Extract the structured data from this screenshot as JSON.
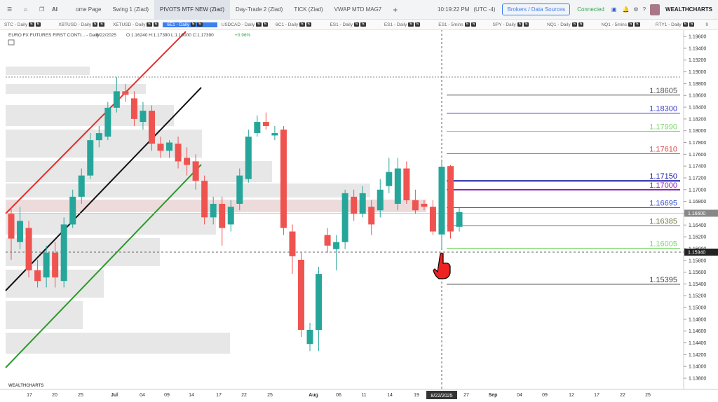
{
  "toolbar": {
    "ai_label": "AI",
    "tabs": [
      "ome Page",
      "Swing 1 (Ziad)",
      "PIVOTS MTF NEW (Ziad)",
      "Day-Trade 2 (Ziad)",
      "TICK (Ziad)",
      "VWAP MTD MAG7"
    ],
    "active_tab": 2
  },
  "clock": "10:19:22 PM",
  "timezone": "(UTC -4)",
  "broker_button": "Brokers / Data Sources",
  "status": "Connected",
  "brand": "WEALTHCHARTS",
  "symbols": [
    "STC - Daily",
    "XBTUSD - Daily",
    "XETUSD - Daily",
    "6E1 - Daily",
    "USDCAD - Daily",
    "6C1 - Daily",
    "ES1 - Daily",
    "ES1 - Daily",
    "ES1 - 5mins",
    "SPY - Daily",
    "NQ1 - Daily",
    "NQ1 - 5mins",
    "RTY1 - Daily"
  ],
  "active_symbol": 3,
  "symbol_badge": "5",
  "more_count": "9",
  "chart_data": {
    "type": "candlestick",
    "title": "EURO FX FUTURES FIRST CONTI... - Daily",
    "date": "8/22/2025",
    "ohlc": "O:1.16240 H:1.17390 L:1.16000 C:1.17390",
    "change": "+0.96%",
    "open": [
      1.1659,
      1.1611,
      1.1635,
      1.1563,
      1.1551,
      1.1593,
      1.1545,
      1.1641,
      1.1688,
      1.1724,
      1.1784,
      1.179,
      1.1839,
      1.1867,
      1.1855,
      1.1815,
      1.1834,
      1.1778,
      1.1766,
      1.1778,
      1.1754,
      1.1748,
      1.1715,
      1.1653,
      1.1676,
      1.1641,
      1.1676,
      1.1718,
      1.1796,
      1.1815,
      1.1792,
      1.1802,
      1.1629,
      1.1581,
      1.1438,
      1.1462,
      1.1623,
      1.1599,
      1.1611,
      1.1688,
      1.1659,
      1.1671,
      1.1665,
      1.1706,
      1.1676,
      1.1736,
      1.1682,
      1.1676,
      1.1671,
      1.1624,
      1.174,
      1.1637
    ],
    "high": [
      1.1671,
      1.1671,
      1.1647,
      1.1581,
      1.1605,
      1.1611,
      1.1653,
      1.17,
      1.1736,
      1.1796,
      1.1808,
      1.1849,
      1.1891,
      1.1879,
      1.1867,
      1.1849,
      1.1843,
      1.179,
      1.1784,
      1.179,
      1.1772,
      1.176,
      1.1724,
      1.1688,
      1.1688,
      1.1682,
      1.1736,
      1.1802,
      1.1826,
      1.1831,
      1.1808,
      1.1808,
      1.1641,
      1.1593,
      1.1474,
      1.1569,
      1.1635,
      1.1623,
      1.17,
      1.17,
      1.1706,
      1.1682,
      1.1718,
      1.1754,
      1.1754,
      1.1748,
      1.17,
      1.1682,
      1.1682,
      1.1748,
      1.1742,
      1.1671
    ],
    "low": [
      1.1581,
      1.1599,
      1.1551,
      1.1534,
      1.1534,
      1.1534,
      1.1534,
      1.1635,
      1.1676,
      1.1718,
      1.1772,
      1.1784,
      1.1831,
      1.1849,
      1.1808,
      1.1802,
      1.1766,
      1.1754,
      1.1754,
      1.1736,
      1.1724,
      1.17,
      1.1641,
      1.1641,
      1.1605,
      1.1629,
      1.1665,
      1.1712,
      1.179,
      1.1802,
      1.1784,
      1.1623,
      1.1557,
      1.145,
      1.1426,
      1.1426,
      1.1593,
      1.1563,
      1.1599,
      1.1647,
      1.1653,
      1.1623,
      1.1653,
      1.1694,
      1.1665,
      1.1676,
      1.1659,
      1.1665,
      1.1623,
      1.16,
      1.1617,
      1.1629
    ],
    "close": [
      1.1617,
      1.1647,
      1.1563,
      1.1545,
      1.1593,
      1.1551,
      1.1641,
      1.1688,
      1.1724,
      1.1784,
      1.1796,
      1.1839,
      1.1867,
      1.1861,
      1.182,
      1.1834,
      1.1778,
      1.1766,
      1.178,
      1.1748,
      1.1742,
      1.1715,
      1.1653,
      1.1676,
      1.1635,
      1.1671,
      1.1724,
      1.179,
      1.1815,
      1.1808,
      1.1796,
      1.1635,
      1.1587,
      1.1462,
      1.1462,
      1.1557,
      1.1605,
      1.1611,
      1.1694,
      1.1659,
      1.1694,
      1.1641,
      1.17,
      1.173,
      1.1736,
      1.1682,
      1.1665,
      1.1671,
      1.1629,
      1.1739,
      1.1629,
      1.1662
    ],
    "up_color": "#26a69a",
    "down_color": "#ef5350",
    "ylim": [
      1.1361,
      1.1972
    ],
    "yticks": [
      {
        "value": 1.138,
        "label": "1.13800"
      },
      {
        "value": 1.14,
        "label": "1.14000"
      },
      {
        "value": 1.142,
        "label": "1.14200"
      },
      {
        "value": 1.144,
        "label": "1.14400"
      },
      {
        "value": 1.146,
        "label": "1.14600"
      },
      {
        "value": 1.148,
        "label": "1.14800"
      },
      {
        "value": 1.15,
        "label": "1.15000"
      },
      {
        "value": 1.152,
        "label": "1.15200"
      },
      {
        "value": 1.154,
        "label": "1.15400"
      },
      {
        "value": 1.156,
        "label": "1.15600"
      },
      {
        "value": 1.158,
        "label": "1.15800"
      },
      {
        "value": 1.16,
        "label": "1.16000"
      },
      {
        "value": 1.162,
        "label": "1.16200"
      },
      {
        "value": 1.164,
        "label": "1.16400"
      },
      {
        "value": 1.166,
        "label": "1.16600"
      },
      {
        "value": 1.168,
        "label": "1.16800"
      },
      {
        "value": 1.17,
        "label": "1.17000"
      },
      {
        "value": 1.172,
        "label": "1.17200"
      },
      {
        "value": 1.174,
        "label": "1.17400"
      },
      {
        "value": 1.176,
        "label": "1.17600"
      },
      {
        "value": 1.178,
        "label": "1.17800"
      },
      {
        "value": 1.18,
        "label": "1.18000"
      },
      {
        "value": 1.182,
        "label": "1.18200"
      },
      {
        "value": 1.184,
        "label": "1.18400"
      },
      {
        "value": 1.186,
        "label": "1.18600"
      },
      {
        "value": 1.188,
        "label": "1.18800"
      },
      {
        "value": 1.19,
        "label": "1.19000"
      },
      {
        "value": 1.192,
        "label": "1.19200"
      },
      {
        "value": 1.194,
        "label": "1.19400"
      },
      {
        "value": 1.196,
        "label": "1.19600"
      }
    ],
    "xticks": [
      "17",
      "20",
      "25",
      "Jul",
      "04",
      "09",
      "14",
      "17",
      "22",
      "25",
      "Aug",
      "06",
      "11",
      "14",
      "19",
      "27",
      "Sep",
      "04",
      "09",
      "12",
      "17",
      "22",
      "25"
    ],
    "levels": [
      {
        "value": 1.18605,
        "label": "1.18605",
        "color": "#555555"
      },
      {
        "value": 1.183,
        "label": "1.18300",
        "color": "#3b3bd0"
      },
      {
        "value": 1.1799,
        "label": "1.17990",
        "color": "#7bd86a"
      },
      {
        "value": 1.1761,
        "label": "1.17610",
        "color": "#e04848"
      },
      {
        "value": 1.1715,
        "label": "1.17150",
        "color": "#1a1aa8"
      },
      {
        "value": 1.17,
        "label": "1.17000",
        "color": "#8a1fb8"
      },
      {
        "value": 1.16695,
        "label": "1.16695",
        "color": "#3a55d0"
      },
      {
        "value": 1.16385,
        "label": "1.16385",
        "color": "#6b7a40"
      },
      {
        "value": 1.16005,
        "label": "1.16005",
        "color": "#7bd86a"
      },
      {
        "value": 1.15395,
        "label": "1.15395",
        "color": "#444444"
      }
    ],
    "last_price": {
      "value": 1.166,
      "label": "1.16600"
    },
    "crosshair": {
      "value": 1.1594,
      "label": "1.15940"
    }
  }
}
